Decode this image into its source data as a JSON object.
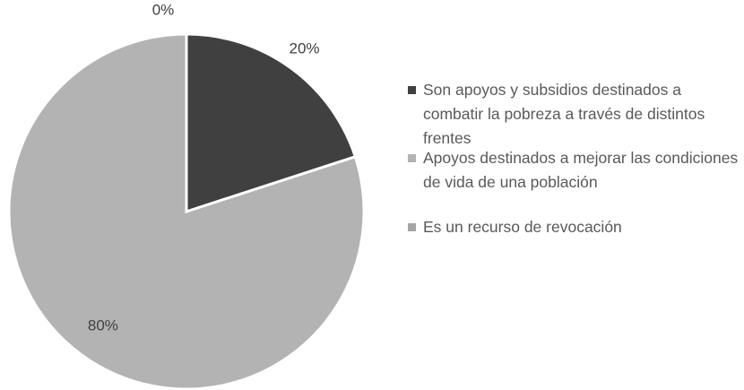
{
  "chart_data": {
    "type": "pie",
    "categories": [
      "Son apoyos y subsidios destinados a combatir la pobreza a través de distintos frentes",
      "Apoyos destinados a mejorar las condiciones de vida de una población",
      "Es un recurso de revocación"
    ],
    "values": [
      20,
      80,
      0
    ],
    "value_labels": [
      "20%",
      "80%",
      "0%"
    ],
    "colors": [
      "#404040",
      "#b3b3b3",
      "#a6a6a6"
    ],
    "legend": "right"
  }
}
